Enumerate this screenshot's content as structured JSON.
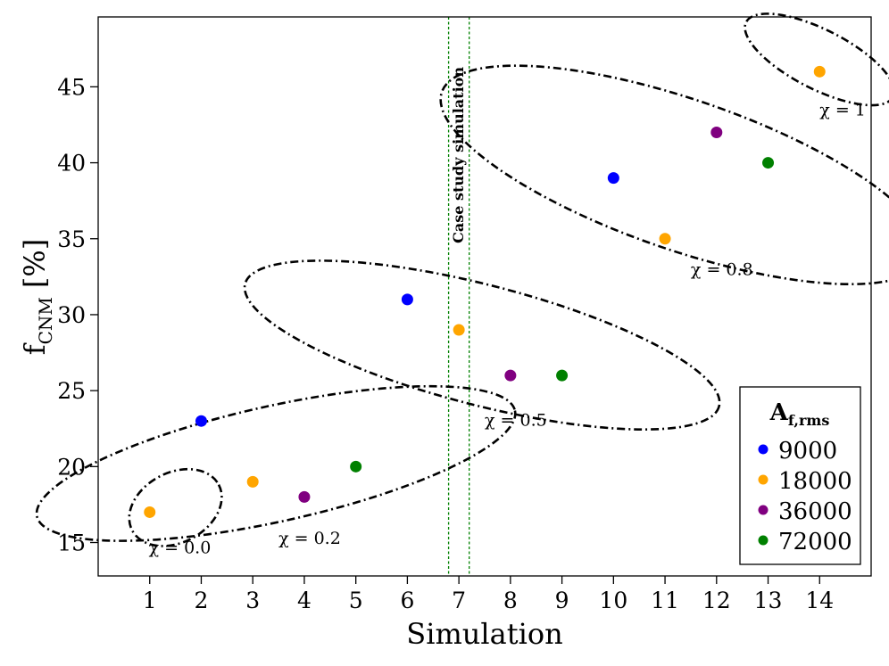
{
  "chart_data": {
    "type": "scatter",
    "xlabel": "Simulation",
    "ylabel_main": "f",
    "ylabel_sub": "CNM",
    "ylabel_unit": "[%]",
    "xlim": [
      0,
      15
    ],
    "ylim": [
      12.8,
      49.6
    ],
    "x_ticks": [
      1,
      2,
      3,
      4,
      5,
      6,
      7,
      8,
      9,
      10,
      11,
      12,
      13,
      14
    ],
    "y_ticks": [
      15,
      20,
      25,
      30,
      35,
      40,
      45
    ],
    "grid": false,
    "legend": {
      "title_main": "A",
      "title_sub": "f,rms",
      "placement": "lower-right",
      "entries": [
        {
          "label": "9000",
          "color": "#0000ff"
        },
        {
          "label": "18000",
          "color": "#ffa500"
        },
        {
          "label": "36000",
          "color": "#800080"
        },
        {
          "label": "72000",
          "color": "#008000"
        }
      ]
    },
    "points": [
      {
        "x": 1,
        "y": 17,
        "series": "18000"
      },
      {
        "x": 2,
        "y": 23,
        "series": "9000"
      },
      {
        "x": 3,
        "y": 19,
        "series": "18000"
      },
      {
        "x": 4,
        "y": 18,
        "series": "36000"
      },
      {
        "x": 5,
        "y": 20,
        "series": "72000"
      },
      {
        "x": 6,
        "y": 31,
        "series": "9000"
      },
      {
        "x": 7,
        "y": 29,
        "series": "18000"
      },
      {
        "x": 8,
        "y": 26,
        "series": "36000"
      },
      {
        "x": 9,
        "y": 26,
        "series": "72000"
      },
      {
        "x": 10,
        "y": 39,
        "series": "9000"
      },
      {
        "x": 11,
        "y": 35,
        "series": "18000"
      },
      {
        "x": 12,
        "y": 42,
        "series": "36000"
      },
      {
        "x": 13,
        "y": 40,
        "series": "72000"
      },
      {
        "x": 14,
        "y": 46,
        "series": "18000"
      }
    ],
    "groups": [
      {
        "label": "χ = 0.0",
        "cx": 1.5,
        "cy": 17.3,
        "rx": 0.95,
        "ry": 2.3,
        "angle_deg": -28,
        "label_x": 0.98,
        "label_y": 14.3
      },
      {
        "label": "χ = 0.2",
        "cx": 3.45,
        "cy": 20.2,
        "rx": 4.75,
        "ry": 3.8,
        "angle_deg": -12.5,
        "label_x": 3.5,
        "label_y": 14.9
      },
      {
        "label": "χ = 0.5",
        "cx": 7.45,
        "cy": 28.0,
        "rx": 4.75,
        "ry": 3.95,
        "angle_deg": 14.5,
        "label_x": 7.5,
        "label_y": 22.7
      },
      {
        "label": "χ = 0.8",
        "cx": 11.35,
        "cy": 39.2,
        "rx": 4.95,
        "ry": 4.95,
        "angle_deg": 19,
        "label_x": 11.5,
        "label_y": 32.6
      },
      {
        "label": "χ = 1",
        "cx": 14.0,
        "cy": 46.8,
        "rx": 1.6,
        "ry": 1.95,
        "angle_deg": 27,
        "label_x": 14.0,
        "label_y": 43.1
      }
    ],
    "case_study": {
      "label": "Case study simulation",
      "x_left": 6.8,
      "x_right": 7.2,
      "line_color": "#008000"
    }
  }
}
